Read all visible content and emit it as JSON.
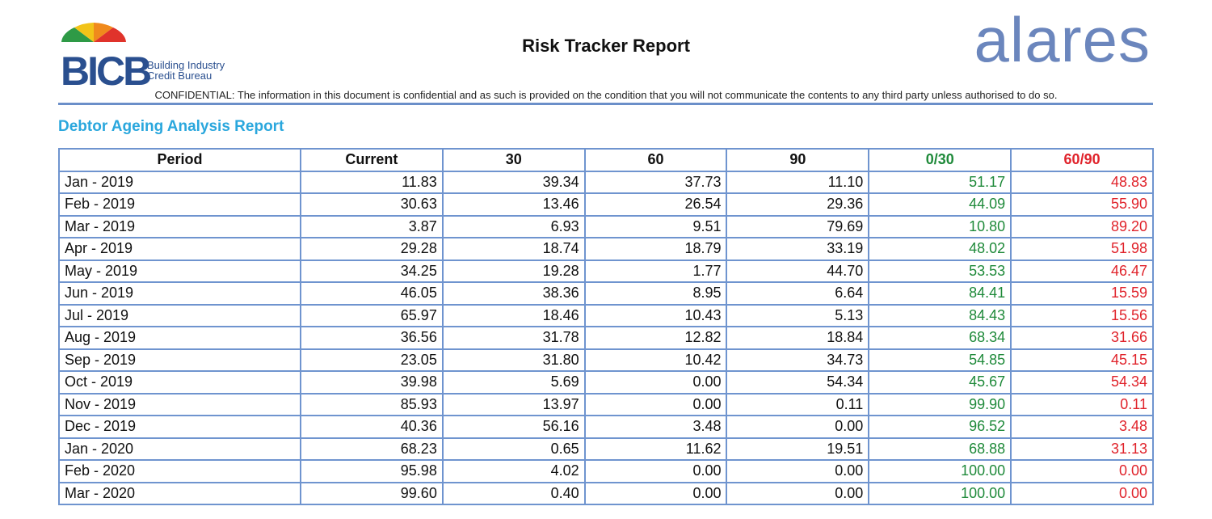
{
  "header": {
    "logo_left": {
      "mark": "BICB",
      "lines": [
        "Building Industry",
        "Credit Bureau"
      ]
    },
    "title": "Risk Tracker Report",
    "logo_right": "alares",
    "confidential": "CONFIDENTIAL: The information in this document is confidential and as such is provided on the condition that you will not communicate the contents to any third party unless authorised to do so."
  },
  "section_title": "Debtor Ageing Analysis Report",
  "table": {
    "columns": [
      "Period",
      "Current",
      "30",
      "60",
      "90",
      "0/30",
      "60/90"
    ],
    "rows": [
      [
        "Jan - 2019",
        "11.83",
        "39.34",
        "37.73",
        "11.10",
        "51.17",
        "48.83"
      ],
      [
        "Feb - 2019",
        "30.63",
        "13.46",
        "26.54",
        "29.36",
        "44.09",
        "55.90"
      ],
      [
        "Mar - 2019",
        "3.87",
        "6.93",
        "9.51",
        "79.69",
        "10.80",
        "89.20"
      ],
      [
        "Apr - 2019",
        "29.28",
        "18.74",
        "18.79",
        "33.19",
        "48.02",
        "51.98"
      ],
      [
        "May - 2019",
        "34.25",
        "19.28",
        "1.77",
        "44.70",
        "53.53",
        "46.47"
      ],
      [
        "Jun - 2019",
        "46.05",
        "38.36",
        "8.95",
        "6.64",
        "84.41",
        "15.59"
      ],
      [
        "Jul - 2019",
        "65.97",
        "18.46",
        "10.43",
        "5.13",
        "84.43",
        "15.56"
      ],
      [
        "Aug - 2019",
        "36.56",
        "31.78",
        "12.82",
        "18.84",
        "68.34",
        "31.66"
      ],
      [
        "Sep - 2019",
        "23.05",
        "31.80",
        "10.42",
        "34.73",
        "54.85",
        "45.15"
      ],
      [
        "Oct - 2019",
        "39.98",
        "5.69",
        "0.00",
        "54.34",
        "45.67",
        "54.34"
      ],
      [
        "Nov - 2019",
        "85.93",
        "13.97",
        "0.00",
        "0.11",
        "99.90",
        "0.11"
      ],
      [
        "Dec - 2019",
        "40.36",
        "56.16",
        "3.48",
        "0.00",
        "96.52",
        "3.48"
      ],
      [
        "Jan - 2020",
        "68.23",
        "0.65",
        "11.62",
        "19.51",
        "68.88",
        "31.13"
      ],
      [
        "Feb - 2020",
        "95.98",
        "4.02",
        "0.00",
        "0.00",
        "100.00",
        "0.00"
      ],
      [
        "Mar - 2020",
        "99.60",
        "0.40",
        "0.00",
        "0.00",
        "100.00",
        "0.00"
      ]
    ]
  }
}
